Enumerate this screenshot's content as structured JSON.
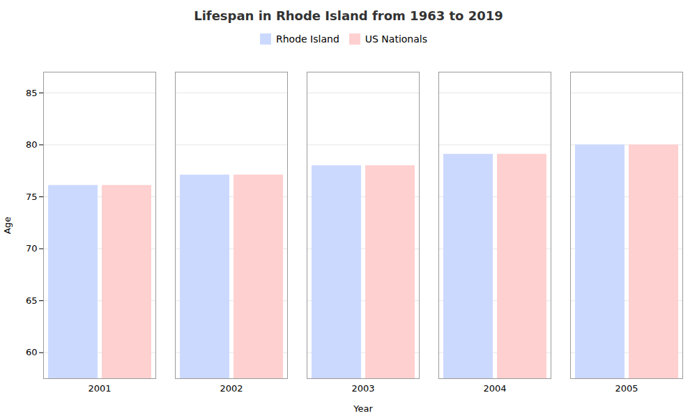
{
  "chart_data": {
    "type": "bar",
    "title": "Lifespan in Rhode Island from 1963 to 2019",
    "xlabel": "Year",
    "ylabel": "Age",
    "categories": [
      "2001",
      "2002",
      "2003",
      "2004",
      "2005"
    ],
    "series": [
      {
        "name": "Rhode Island",
        "color": "#ccd9ff",
        "values": [
          76.1,
          77.1,
          78.0,
          79.1,
          80.0
        ]
      },
      {
        "name": "US Nationals",
        "color": "#ffd0d0",
        "values": [
          76.1,
          77.1,
          78.0,
          79.1,
          80.0
        ]
      }
    ],
    "ylim": [
      57.5,
      87
    ],
    "yticks": [
      60,
      65,
      70,
      75,
      80,
      85
    ],
    "grid": true,
    "legend": "top"
  }
}
